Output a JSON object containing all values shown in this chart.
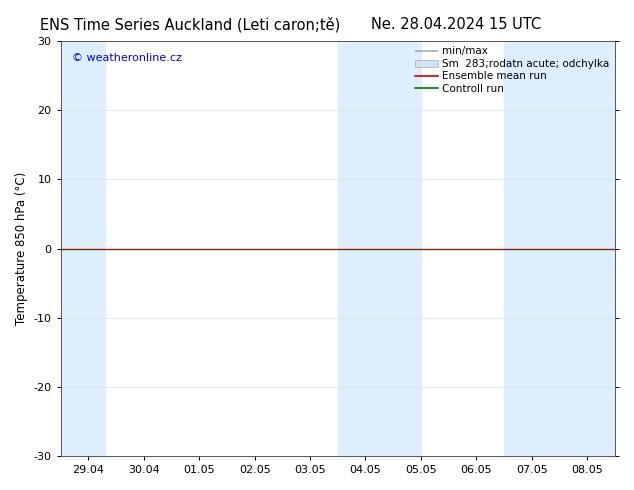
{
  "title_left": "ENS Time Series Auckland (Leti caron;tě)",
  "title_right": "Ne. 28.04.2024 15 UTC",
  "ylabel": "Temperature 850 hPa (°C)",
  "watermark": "© weatheronline.cz",
  "watermark_color": "#0000dd",
  "ylim": [
    -30,
    30
  ],
  "yticks": [
    -30,
    -20,
    -10,
    0,
    10,
    20,
    30
  ],
  "x_labels": [
    "29.04",
    "30.04",
    "01.05",
    "02.05",
    "03.05",
    "04.05",
    "05.05",
    "06.05",
    "07.05",
    "08.05"
  ],
  "x_values": [
    0,
    1,
    2,
    3,
    4,
    5,
    6,
    7,
    8,
    9
  ],
  "xlim": [
    -0.5,
    9.5
  ],
  "shade_regions": [
    {
      "x_start": -0.5,
      "x_end": 0.3,
      "color": "#ddeeff"
    },
    {
      "x_start": 4.5,
      "x_end": 6.0,
      "color": "#ddeeff"
    },
    {
      "x_start": 7.5,
      "x_end": 9.5,
      "color": "#ddeeff"
    }
  ],
  "flat_value": 0.0,
  "line_green_color": "#007700",
  "line_red_color": "#cc0000",
  "background_color": "#ffffff",
  "plot_bg_color": "#ffffff",
  "title_fontsize": 10.5,
  "axis_fontsize": 8.5,
  "tick_fontsize": 8.0,
  "legend_fontsize": 7.5,
  "shade_color": "#ddeeff",
  "grid_color": "#dddddd",
  "spine_color": "#555555"
}
